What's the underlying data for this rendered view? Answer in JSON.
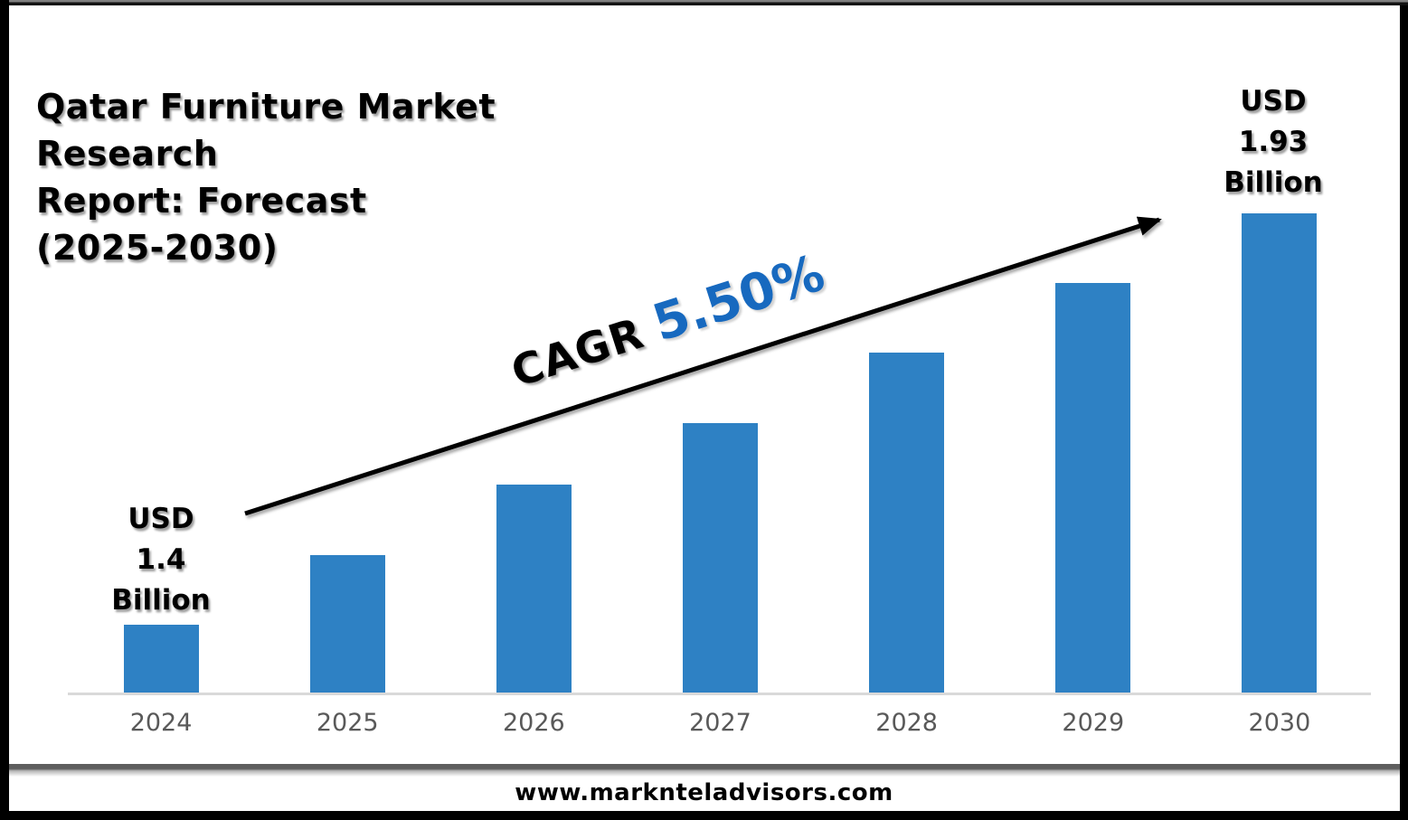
{
  "title": "Qatar Furniture Market Research\nReport: Forecast\n(2025-2030)",
  "cagr": {
    "prefix": "CAGR",
    "value": "5.50%"
  },
  "value_labels": {
    "start": "USD\n1.4\nBillion",
    "end": "USD\n1.93\nBillion"
  },
  "footer": {
    "url": "www.marknteladvisors.com"
  },
  "colors": {
    "bar": "#2E81C4",
    "cagr_value": "#1769BF",
    "axis_line": "#D9D9D9",
    "tick_text": "#595959",
    "arrow": "#000000"
  },
  "chart_data": {
    "type": "bar",
    "title": "Qatar Furniture Market Research Report: Forecast (2025-2030)",
    "unit": "USD Billion",
    "categories": [
      "2024",
      "2025",
      "2026",
      "2027",
      "2028",
      "2029",
      "2030"
    ],
    "values": [
      1.4,
      1.49,
      1.58,
      1.66,
      1.75,
      1.84,
      1.93
    ],
    "ylim": [
      1.31,
      1.93
    ],
    "xlabel": "",
    "ylabel": "",
    "grid": false,
    "legend": false,
    "annotations": [
      {
        "text": "CAGR 5.50%",
        "type": "trend-arrow"
      },
      {
        "text": "USD 1.4 Billion",
        "target": "2024"
      },
      {
        "text": "USD 1.93 Billion",
        "target": "2030"
      }
    ]
  }
}
